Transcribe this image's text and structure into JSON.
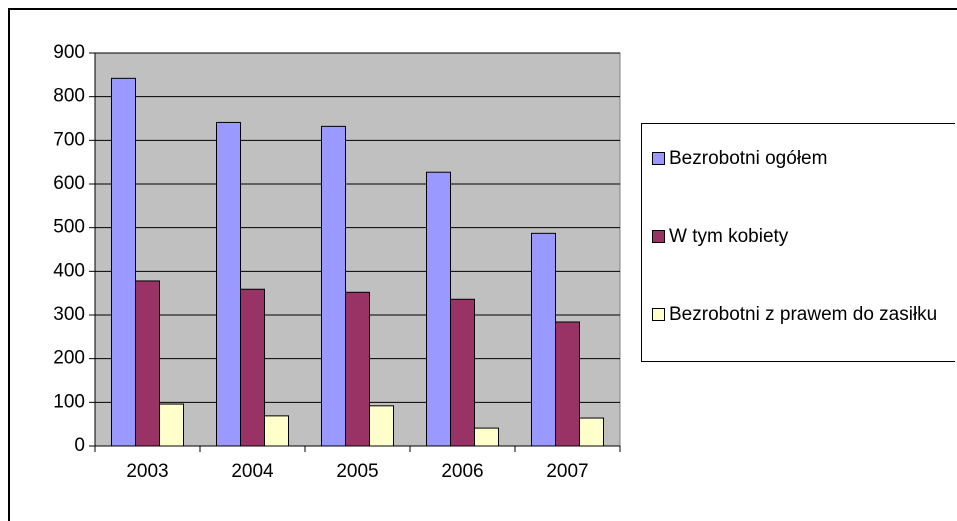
{
  "chart_data": {
    "type": "bar",
    "categories": [
      "2003",
      "2004",
      "2005",
      "2006",
      "2007"
    ],
    "series": [
      {
        "name": "Bezrobotni ogółem",
        "color": "#9999ff",
        "values": [
          842,
          741,
          732,
          627,
          487
        ]
      },
      {
        "name": "W tym kobiety",
        "color": "#993366",
        "values": [
          378,
          359,
          352,
          336,
          284
        ]
      },
      {
        "name": "Bezrobotni z prawem do zasiłku",
        "color": "#ffffcc",
        "values": [
          96,
          69,
          92,
          41,
          64
        ]
      }
    ],
    "ylim": [
      0,
      900
    ],
    "yticks": [
      0,
      100,
      200,
      300,
      400,
      500,
      600,
      700,
      800,
      900
    ],
    "grid": true,
    "legend": "right"
  }
}
